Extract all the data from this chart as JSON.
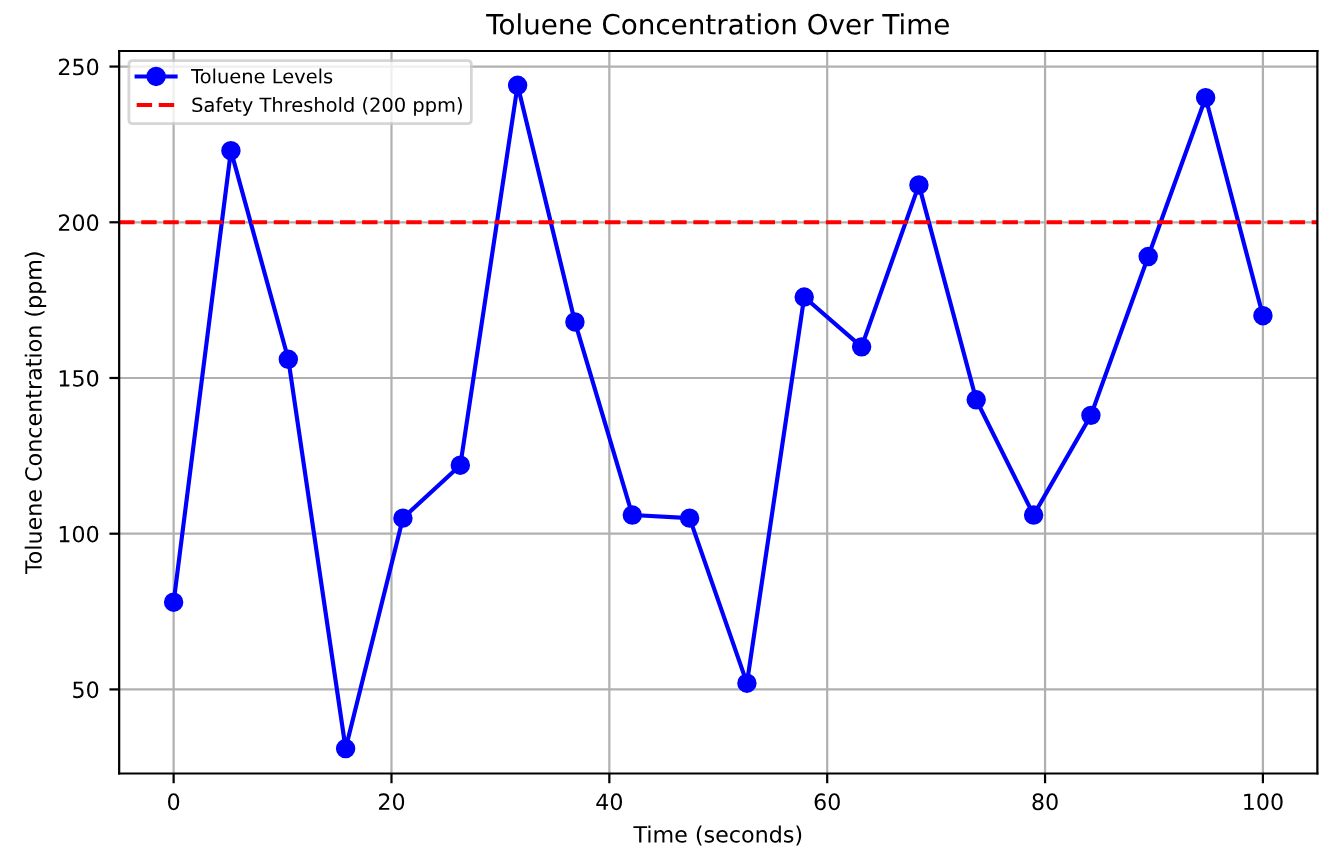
{
  "chart_data": {
    "type": "line",
    "title": "Toluene Concentration Over Time",
    "xlabel": "Time (seconds)",
    "ylabel": "Toluene Concentration (ppm)",
    "x": [
      0,
      5.26,
      10.53,
      15.79,
      21.05,
      26.32,
      31.58,
      36.84,
      42.11,
      47.37,
      52.63,
      57.89,
      63.16,
      68.42,
      73.68,
      78.95,
      84.21,
      89.47,
      94.74,
      100
    ],
    "series": [
      {
        "name": "Toluene Levels",
        "color": "#0000ff",
        "values": [
          78,
          223,
          156,
          31,
          105,
          122,
          244,
          168,
          106,
          105,
          52,
          176,
          160,
          212,
          143,
          106,
          138,
          189,
          240,
          170
        ]
      }
    ],
    "ref_lines": [
      {
        "axis": "y",
        "value": 200,
        "label": "Safety Threshold (200 ppm)",
        "color": "#ff0000",
        "line_style": "dashed"
      }
    ],
    "xlim": [
      -5,
      105
    ],
    "ylim": [
      23,
      255
    ],
    "xticks": [
      0,
      20,
      40,
      60,
      80,
      100
    ],
    "yticks": [
      50,
      100,
      150,
      200,
      250
    ],
    "grid": true,
    "legend": "top left",
    "marker": "circle",
    "line_style": "solid"
  }
}
